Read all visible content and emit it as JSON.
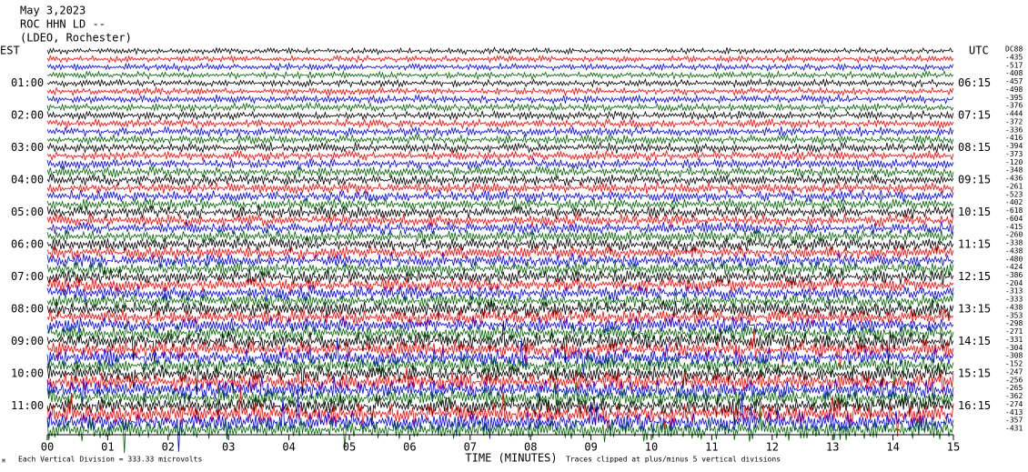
{
  "chart_data": {
    "type": "helicorder",
    "title_lines": [
      "May 3,2023",
      "ROC HHN LD --",
      "(LDEO, Rochester)"
    ],
    "xlabel": "TIME (MINUTES)",
    "xlim": [
      0,
      15
    ],
    "xticks": [
      {
        "value": 0,
        "label": "00"
      },
      {
        "value": 1,
        "label": "01"
      },
      {
        "value": 2,
        "label": "02"
      },
      {
        "value": 3,
        "label": "03"
      },
      {
        "value": 4,
        "label": "04"
      },
      {
        "value": 5,
        "label": "05"
      },
      {
        "value": 6,
        "label": "06"
      },
      {
        "value": 7,
        "label": "07"
      },
      {
        "value": 8,
        "label": "08"
      },
      {
        "value": 9,
        "label": "09"
      },
      10,
      11,
      12,
      13,
      14,
      15
    ],
    "left_labels": [
      "EST",
      "01:00",
      "02:00",
      "03:00",
      "04:00",
      "05:00",
      "06:00",
      "07:00",
      "08:00",
      "09:00",
      "10:00",
      "11:00"
    ],
    "right_labels": [
      "UTC",
      "06:15",
      "07:15",
      "08:15",
      "09:15",
      "10:15",
      "11:15",
      "12:15",
      "13:15",
      "14:15",
      "15:15",
      "16:15"
    ],
    "offset_header": "DC88",
    "offsets": [
      -435,
      -517,
      -408,
      -457,
      -498,
      -395,
      -376,
      -444,
      -372,
      -336,
      -416,
      -394,
      -373,
      -120,
      -348,
      -436,
      -261,
      -523,
      -402,
      -618,
      -604,
      -415,
      -260,
      -338,
      -438,
      -480,
      -424,
      -386,
      -204,
      -313,
      -333,
      -438,
      -353,
      -298,
      -271,
      -331,
      -304,
      -308,
      -152,
      -247,
      -256,
      -265,
      -362,
      -274,
      -413,
      -357,
      -431
    ],
    "trace_colors": [
      "#000000",
      "#ff0000",
      "#0000ff",
      "#006400"
    ],
    "footer_left": "Each Vertical Division =  333.33 microvolts",
    "footer_right": "Traces clipped at plus/minus 5 vertical divisions"
  }
}
